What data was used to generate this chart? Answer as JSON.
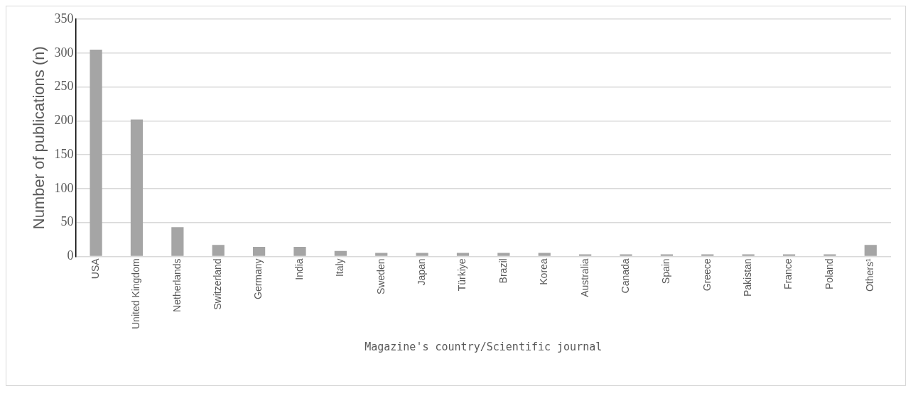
{
  "chart_data": {
    "type": "bar",
    "xlabel": "Magazine's country/Scientific journal",
    "ylabel": "Number of publications (n)",
    "categories": [
      "USA",
      "United Kingdom",
      "Netherlands",
      "Switzerland",
      "Germany",
      "India",
      "Italy",
      "Sweden",
      "Japan",
      "Türkiye",
      "Brazil",
      "Korea",
      "Australia",
      "Canada",
      "Spain",
      "Greece",
      "Pakistan",
      "France",
      "Poland",
      "Others¹"
    ],
    "values": [
      305,
      202,
      43,
      17,
      14,
      14,
      8,
      5,
      5,
      5,
      5,
      5,
      3,
      3,
      3,
      3,
      3,
      3,
      3,
      17
    ],
    "color": "#a5a5a5",
    "ylim": [
      0,
      350
    ],
    "yticks": [
      0,
      50,
      100,
      150,
      200,
      250,
      300,
      350
    ],
    "grid": "y",
    "legend": false
  }
}
